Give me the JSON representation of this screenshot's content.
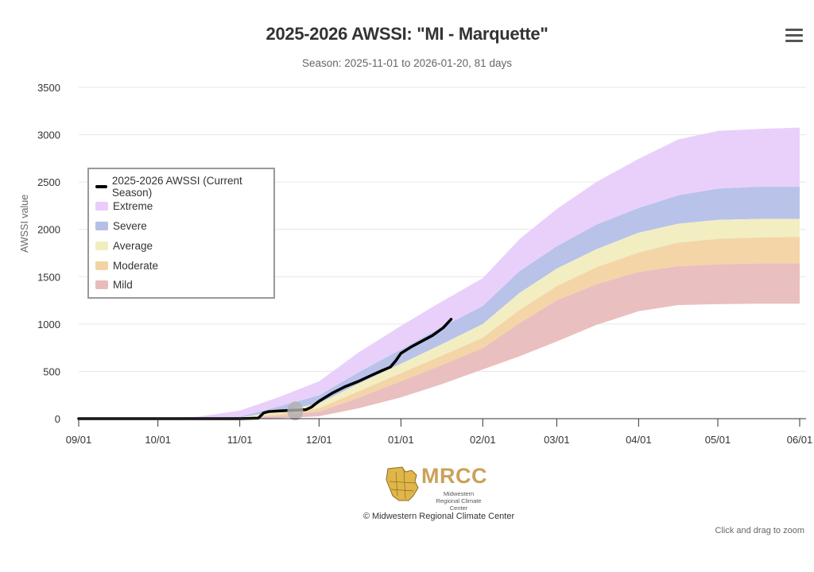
{
  "header": {
    "title": "2025-2026 AWSSI: \"MI - Marquette\"",
    "subtitle": "Season: 2025-11-01 to 2026-01-20, 81 days",
    "menu_icon": "hamburger-menu-icon"
  },
  "footer": {
    "logo_text": "MRCC",
    "logo_subtext": "Midwestern Regional Climate Center",
    "credit": "© Midwestern Regional Climate Center",
    "zoom_hint": "Click and drag to zoom"
  },
  "colors": {
    "current": "#000000",
    "extreme": "#e8cdfb",
    "severe": "#b5bfe8",
    "average": "#f1edbf",
    "moderate": "#f3d3a3",
    "mild": "#e9bcbc",
    "marker": "#b0b0b0"
  },
  "chart_data": {
    "type": "area",
    "title": "2025-2026 AWSSI: \"MI - Marquette\"",
    "subtitle": "Season: 2025-11-01 to 2026-01-20, 81 days",
    "xlabel": "",
    "ylabel": "AWSSI value",
    "ylim": [
      0,
      3500
    ],
    "yticks": [
      0,
      500,
      1000,
      1500,
      2000,
      2500,
      3000,
      3500
    ],
    "x_unit": "days since 09/01",
    "xlim": [
      0,
      273
    ],
    "xticks": [
      {
        "label": "09/01",
        "day": 0
      },
      {
        "label": "10/01",
        "day": 30
      },
      {
        "label": "11/01",
        "day": 61
      },
      {
        "label": "12/01",
        "day": 91
      },
      {
        "label": "01/01",
        "day": 122
      },
      {
        "label": "02/01",
        "day": 153
      },
      {
        "label": "03/01",
        "day": 181
      },
      {
        "label": "04/01",
        "day": 212
      },
      {
        "label": "05/01",
        "day": 242
      },
      {
        "label": "06/01",
        "day": 273
      }
    ],
    "grid": true,
    "legend_position": "left-center",
    "legend": [
      "2025-2026 AWSSI (Current Season)",
      "Extreme",
      "Severe",
      "Average",
      "Moderate",
      "Mild"
    ],
    "bands_x": [
      0,
      30,
      45,
      61,
      76,
      91,
      106,
      122,
      137,
      153,
      167,
      181,
      196,
      212,
      227,
      242,
      257,
      273
    ],
    "bands": {
      "mild_bottom": [
        0,
        0,
        0,
        0,
        5,
        25,
        110,
        225,
        360,
        520,
        660,
        815,
        990,
        1135,
        1200,
        1210,
        1215,
        1215
      ],
      "mild_top": [
        0,
        0,
        0,
        5,
        30,
        75,
        220,
        395,
        560,
        745,
        1010,
        1250,
        1420,
        1550,
        1610,
        1630,
        1640,
        1640
      ],
      "moderate_top": [
        0,
        0,
        0,
        8,
        50,
        110,
        290,
        480,
        660,
        855,
        1150,
        1400,
        1600,
        1755,
        1860,
        1900,
        1915,
        1920
      ],
      "average_top": [
        0,
        0,
        0,
        12,
        80,
        160,
        370,
        580,
        780,
        1000,
        1330,
        1585,
        1790,
        1965,
        2060,
        2100,
        2110,
        2110
      ],
      "severe_top": [
        0,
        0,
        2,
        20,
        130,
        245,
        490,
        730,
        960,
        1190,
        1560,
        1820,
        2050,
        2225,
        2360,
        2430,
        2450,
        2450
      ],
      "extreme_top": [
        0,
        5,
        20,
        85,
        230,
        395,
        700,
        980,
        1230,
        1485,
        1900,
        2215,
        2500,
        2745,
        2950,
        3040,
        3060,
        3075
      ]
    },
    "series": [
      {
        "name": "2025-2026 AWSSI (Current Season)",
        "x": [
          0,
          61,
          68,
          70,
          72,
          76,
          82,
          86,
          88,
          91,
          96,
          101,
          106,
          111,
          115,
          118,
          120,
          122,
          126,
          130,
          134,
          138,
          141
        ],
        "values": [
          0,
          0,
          5,
          60,
          75,
          82,
          90,
          95,
          120,
          185,
          270,
          340,
          395,
          460,
          510,
          545,
          610,
          690,
          760,
          820,
          880,
          960,
          1050
        ]
      }
    ],
    "marker": {
      "x": 82,
      "y": 90
    }
  }
}
